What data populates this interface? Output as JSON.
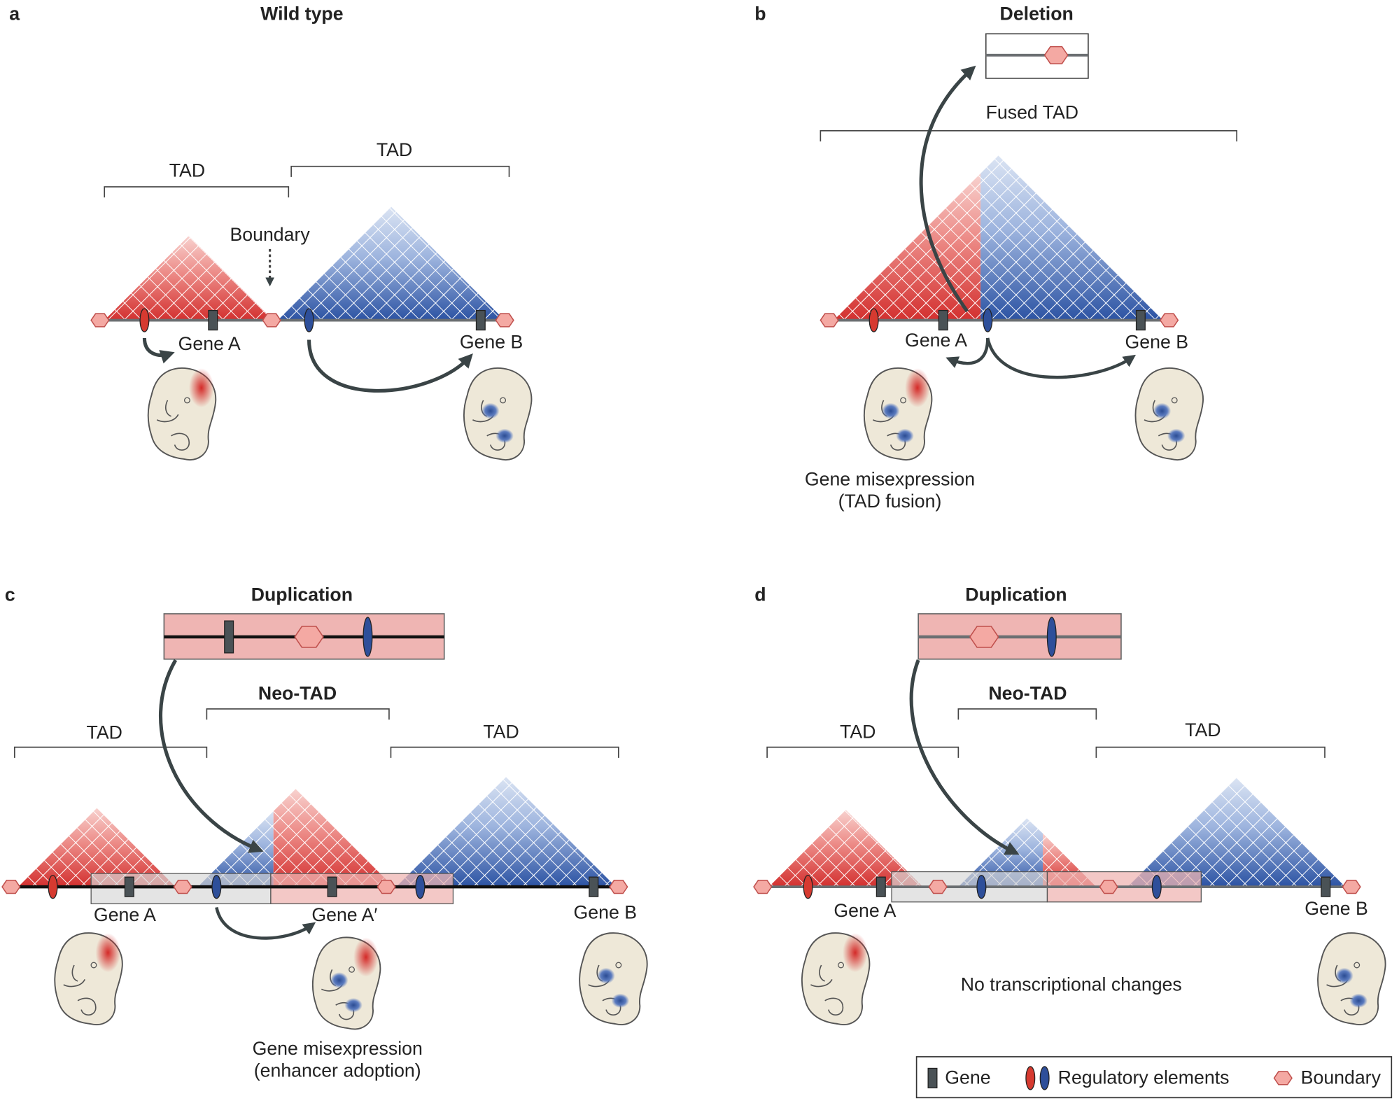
{
  "panels": {
    "a": {
      "letter": "a",
      "title": "Wild type",
      "tad_left": "TAD",
      "tad_right": "TAD",
      "boundary": "Boundary",
      "gene_a": "Gene A",
      "gene_b": "Gene B"
    },
    "b": {
      "letter": "b",
      "title": "Deletion",
      "fused_tad": "Fused TAD",
      "gene_a": "Gene A",
      "gene_b": "Gene B",
      "caption": [
        "Gene misexpression",
        "(TAD fusion)"
      ]
    },
    "c": {
      "letter": "c",
      "title": "Duplication",
      "neo_tad": "Neo-TAD",
      "tad_left": "TAD",
      "tad_right": "TAD",
      "gene_a": "Gene A",
      "gene_a_prime": "Gene A′",
      "gene_b": "Gene B",
      "caption": [
        "Gene misexpression",
        "(enhancer adoption)"
      ]
    },
    "d": {
      "letter": "d",
      "title": "Duplication",
      "neo_tad": "Neo-TAD",
      "tad_left": "TAD",
      "tad_right": "TAD",
      "gene_a": "Gene A",
      "gene_b": "Gene B",
      "caption": [
        "No transcriptional changes"
      ]
    }
  },
  "legend": {
    "gene": "Gene",
    "regulatory": "Regulatory elements",
    "boundary": "Boundary"
  }
}
